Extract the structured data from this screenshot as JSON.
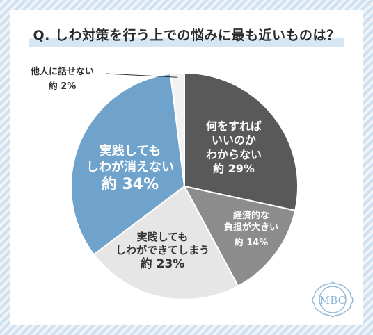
{
  "title": "Q. しわ対策を行う上での悩みに最も近いものは？",
  "chart_data": {
    "type": "pie",
    "start_angle_deg": 0,
    "direction": "clockwise",
    "slices": [
      {
        "label_lines": [
          "何をすれば",
          "いいのか",
          "わからない"
        ],
        "percent_text": "約 29%",
        "value": 29,
        "color": "#595959"
      },
      {
        "label_lines": [
          "経済的な",
          "負担が大きい"
        ],
        "percent_text": "約 14%",
        "value": 14,
        "color": "#8c8c8c"
      },
      {
        "label_lines": [
          "実践しても",
          "しわができてしまう"
        ],
        "percent_text": "約 23%",
        "value": 23,
        "color": "#e6e6e6"
      },
      {
        "label_lines": [
          "実践しても",
          "しわが消えない"
        ],
        "percent_text": "約 34%",
        "value": 34,
        "color": "#6fa3cc"
      },
      {
        "label_lines": [
          "他人に話せない"
        ],
        "percent_text": "約 2%",
        "value": 2,
        "color": "#f2f2f2"
      }
    ]
  },
  "logo": {
    "text": "MBC",
    "color": "#8fb6d6"
  }
}
